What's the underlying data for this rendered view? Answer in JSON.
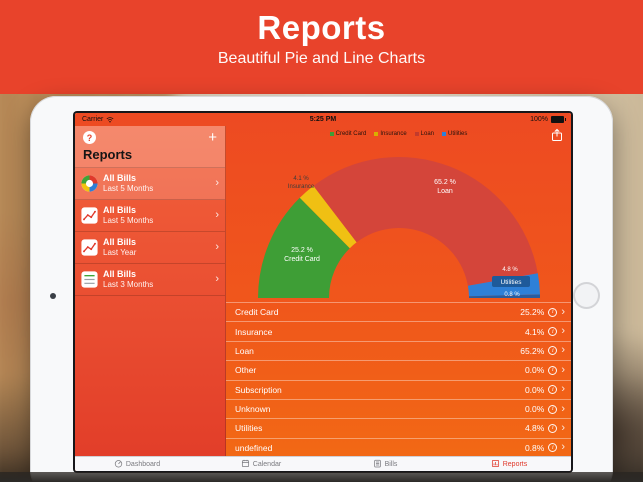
{
  "banner": {
    "title": "Reports",
    "subtitle": "Beautiful Pie and Line Charts"
  },
  "status_bar": {
    "carrier": "Carrier",
    "time": "5:25 PM",
    "battery": "100%"
  },
  "glyphs": {
    "help": "?",
    "add": "+",
    "chevron": "›",
    "info": "i"
  },
  "sidebar": {
    "title": "Reports",
    "items": [
      {
        "title": "All Bills",
        "subtitle": "Last 5 Months",
        "icon": "pie-chart",
        "selected": true
      },
      {
        "title": "All Bills",
        "subtitle": "Last 5 Months",
        "icon": "line-chart",
        "selected": false
      },
      {
        "title": "All Bills",
        "subtitle": "Last Year",
        "icon": "line-chart",
        "selected": false
      },
      {
        "title": "All Bills",
        "subtitle": "Last 3 Months",
        "icon": "list",
        "selected": false
      }
    ]
  },
  "legend": [
    {
      "label": "Credit Card",
      "color": "#3e9e36"
    },
    {
      "label": "Insurance",
      "color": "#d9ae00"
    },
    {
      "label": "Loan",
      "color": "#c23b2d"
    },
    {
      "label": "Utilities",
      "color": "#2e80d8"
    }
  ],
  "chart_data": {
    "type": "pie",
    "variant": "half-donut",
    "title": "",
    "legend_position": "top",
    "slices": [
      {
        "label": "Credit Card",
        "value": 25.2,
        "pct_label": "25.2 %",
        "color": "#3e9e36"
      },
      {
        "label": "Insurance",
        "value": 4.1,
        "pct_label": "4.1 %",
        "color": "#f0c013"
      },
      {
        "label": "Loan",
        "value": 65.2,
        "pct_label": "65.2 %",
        "color": "#d4453a"
      },
      {
        "label": "Utilities",
        "value": 4.8,
        "pct_label": "4.8 %",
        "color": "#2e80d8"
      },
      {
        "label": "undefined",
        "value": 0.8,
        "pct_label": "0.8 %",
        "color": "#2a5c9e"
      }
    ]
  },
  "table": {
    "rows": [
      {
        "label": "Credit Card",
        "value": "25.2%"
      },
      {
        "label": "Insurance",
        "value": "4.1%"
      },
      {
        "label": "Loan",
        "value": "65.2%"
      },
      {
        "label": "Other",
        "value": "0.0%"
      },
      {
        "label": "Subscription",
        "value": "0.0%"
      },
      {
        "label": "Unknown",
        "value": "0.0%"
      },
      {
        "label": "Utilities",
        "value": "4.8%"
      },
      {
        "label": "undefined",
        "value": "0.8%"
      }
    ]
  },
  "tab_bar": {
    "tabs": [
      {
        "label": "Dashboard",
        "icon": "dashboard",
        "active": false
      },
      {
        "label": "Calendar",
        "icon": "calendar",
        "active": false
      },
      {
        "label": "Bills",
        "icon": "bills",
        "active": false
      },
      {
        "label": "Reports",
        "icon": "reports",
        "active": true
      }
    ]
  }
}
